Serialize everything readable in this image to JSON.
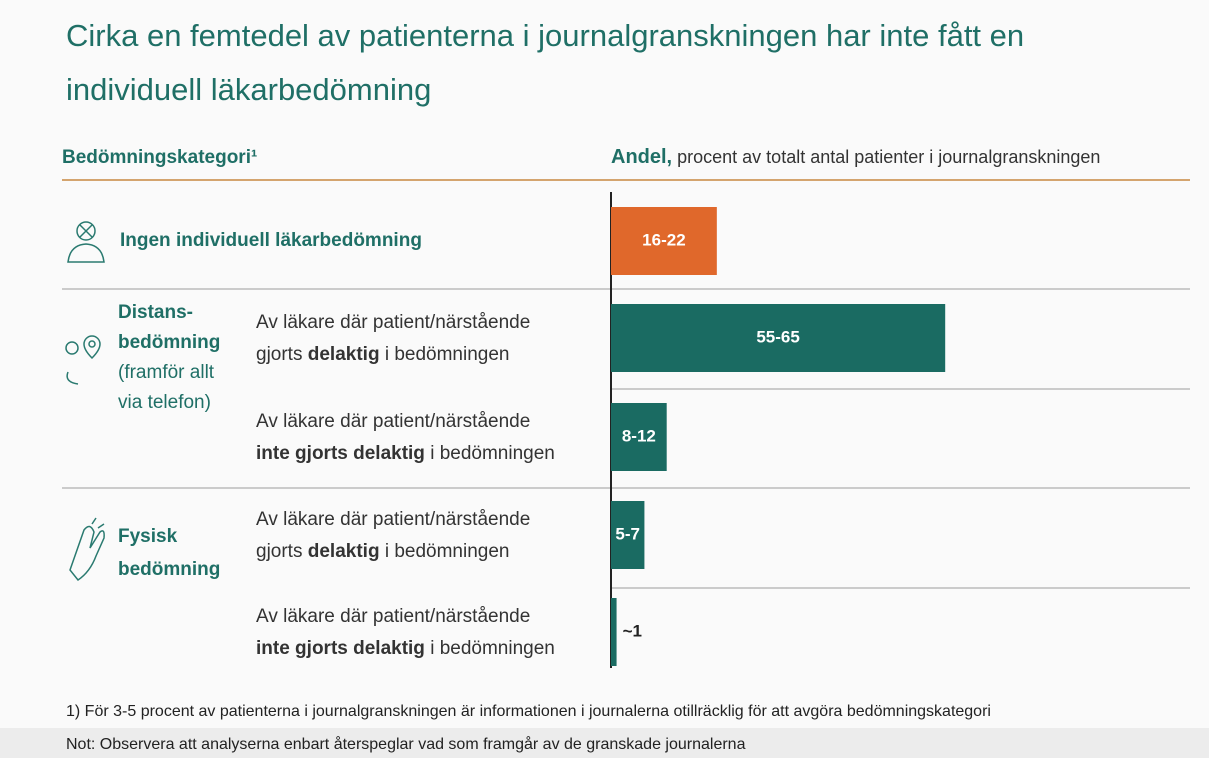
{
  "chart_data": {
    "type": "bar",
    "orientation": "horizontal",
    "title": [
      "Cirka en femtedel av patienterna i journalgranskningen har inte fått en",
      "individuell läkarbedömning"
    ],
    "category_header": "Bedömningskategori¹",
    "value_header": [
      {
        "t": "Andel,",
        "b": true
      },
      {
        "t": " procent av totalt antal patienter i journalgranskningen",
        "b": false
      }
    ],
    "groups": [
      [
        [
          {
            "t": "Ingen individuell läkarbedömning",
            "b": true
          }
        ]
      ],
      [
        [
          {
            "t": "Distans-",
            "b": true
          }
        ],
        [
          {
            "t": "bedömning",
            "b": true
          }
        ],
        [
          {
            "t": "(framför allt",
            "b": false
          }
        ],
        [
          {
            "t": "via telefon)",
            "b": false
          }
        ]
      ],
      [
        [
          {
            "t": "Fysisk",
            "b": true
          }
        ],
        [
          {
            "t": "bedömning",
            "b": true
          }
        ]
      ]
    ],
    "categories": [
      null,
      [
        [
          {
            "t": "Av läkare där patient/närstående",
            "b": false
          }
        ],
        [
          {
            "t": "gjorts ",
            "b": false
          },
          {
            "t": "delaktig",
            "b": true
          },
          {
            "t": " i bedömningen",
            "b": false
          }
        ]
      ],
      [
        [
          {
            "t": "Av läkare där patient/närstående",
            "b": false
          }
        ],
        [
          {
            "t": "inte gjorts delaktig",
            "b": true
          },
          {
            "t": " i bedömningen",
            "b": false
          }
        ]
      ],
      [
        [
          {
            "t": "Av läkare där patient/närstående",
            "b": false
          }
        ],
        [
          {
            "t": "gjorts ",
            "b": false
          },
          {
            "t": "delaktig",
            "b": true
          },
          {
            "t": " i bedömningen",
            "b": false
          }
        ]
      ],
      [
        [
          {
            "t": "Av läkare där patient/närstående",
            "b": false
          }
        ],
        [
          {
            "t": "inte gjorts delaktig",
            "b": true
          },
          {
            "t": " i bedömningen",
            "b": false
          }
        ]
      ]
    ],
    "values": [
      19,
      60,
      10,
      6,
      1
    ],
    "value_labels": [
      "16-22",
      "55-65",
      "8-12",
      "5-7",
      "~1"
    ],
    "colors": [
      "#e0682b",
      "#1a6b62",
      "#1a6b62",
      "#1a6b62",
      "#1a6b62"
    ],
    "xlim": [
      0,
      100
    ],
    "footnotes": [
      "1) För 3-5 procent av patienterna i journalgranskningen är informationen i journalerna otillräcklig för att avgöra bedömningskategori",
      "Not: Observera att analyserna enbart återspeglar vad som framgår av de granskade journalerna"
    ]
  }
}
